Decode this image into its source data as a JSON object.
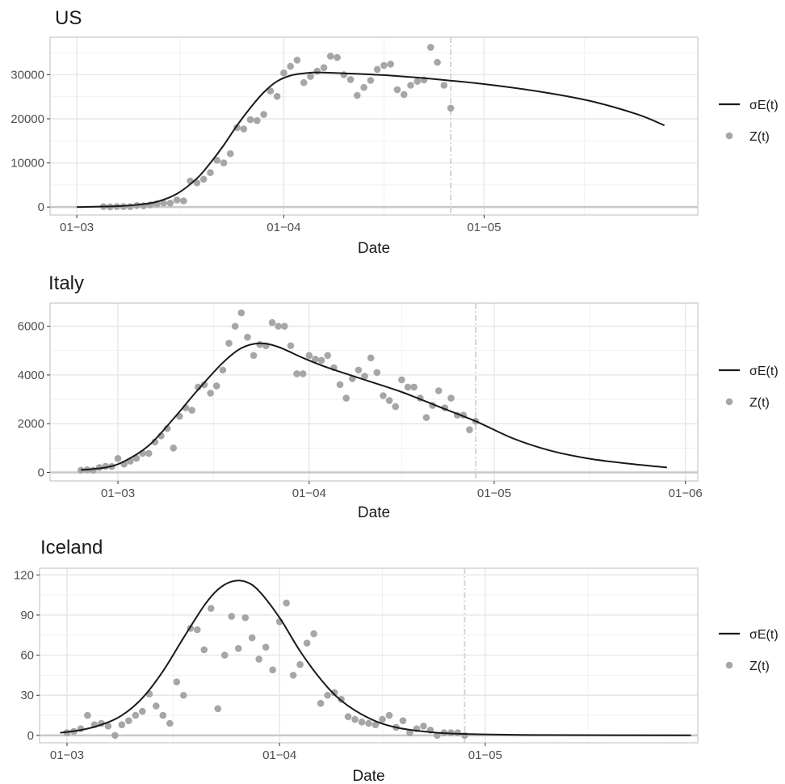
{
  "chart_data": [
    {
      "type": "line",
      "title": "US",
      "xlabel": "Date",
      "ylabel": "",
      "x_ticks": [
        "01−03",
        "01−04",
        "01−05"
      ],
      "x_tick_dates": [
        "2020-03-01",
        "2020-04-01",
        "2020-05-01"
      ],
      "xlim": [
        "2020-02-26",
        "2020-06-02"
      ],
      "ylim": [
        -1800,
        38500
      ],
      "y_ticks": [
        0,
        10000,
        20000,
        30000
      ],
      "y_tick_labels": [
        "0",
        "10000",
        "20000",
        "30000"
      ],
      "vline_date": "2020-04-26",
      "grid": true,
      "legend_position": "right",
      "legend": [
        "σE(t)",
        "Z(t)"
      ],
      "series": [
        {
          "name": "σE(t)",
          "kind": "line",
          "x": [
            "2020-03-01",
            "2020-03-07",
            "2020-03-10",
            "2020-03-13",
            "2020-03-16",
            "2020-03-19",
            "2020-03-21",
            "2020-03-23",
            "2020-03-25",
            "2020-03-27",
            "2020-03-29",
            "2020-03-31",
            "2020-04-02",
            "2020-04-04",
            "2020-04-06",
            "2020-04-10",
            "2020-04-17",
            "2020-04-25",
            "2020-05-02",
            "2020-05-10",
            "2020-05-17",
            "2020-05-24",
            "2020-05-28"
          ],
          "values": [
            0,
            200,
            500,
            1200,
            3000,
            6500,
            10000,
            14000,
            18500,
            22500,
            26000,
            28500,
            29800,
            30300,
            30500,
            30300,
            29800,
            28800,
            27700,
            26000,
            24000,
            21000,
            18500
          ]
        },
        {
          "name": "Z(t)",
          "kind": "scatter",
          "x": [
            "2020-03-05",
            "2020-03-06",
            "2020-03-07",
            "2020-03-08",
            "2020-03-09",
            "2020-03-10",
            "2020-03-11",
            "2020-03-12",
            "2020-03-13",
            "2020-03-14",
            "2020-03-15",
            "2020-03-16",
            "2020-03-17",
            "2020-03-18",
            "2020-03-19",
            "2020-03-20",
            "2020-03-21",
            "2020-03-22",
            "2020-03-23",
            "2020-03-24",
            "2020-03-25",
            "2020-03-26",
            "2020-03-27",
            "2020-03-28",
            "2020-03-29",
            "2020-03-30",
            "2020-03-31",
            "2020-04-01",
            "2020-04-02",
            "2020-04-03",
            "2020-04-04",
            "2020-04-05",
            "2020-04-06",
            "2020-04-07",
            "2020-04-08",
            "2020-04-09",
            "2020-04-10",
            "2020-04-11",
            "2020-04-12",
            "2020-04-13",
            "2020-04-14",
            "2020-04-15",
            "2020-04-16",
            "2020-04-17",
            "2020-04-18",
            "2020-04-19",
            "2020-04-20",
            "2020-04-21",
            "2020-04-22",
            "2020-04-23",
            "2020-04-24",
            "2020-04-25",
            "2020-04-26"
          ],
          "values": [
            100,
            50,
            120,
            100,
            100,
            350,
            300,
            500,
            700,
            900,
            900,
            1600,
            1400,
            5900,
            5500,
            6300,
            7800,
            10600,
            10000,
            12100,
            18000,
            17700,
            19800,
            19600,
            21000,
            26300,
            25100,
            30400,
            31900,
            33300,
            28200,
            29600,
            30800,
            31600,
            34200,
            33900,
            30000,
            28900,
            25300,
            27100,
            28700,
            31200,
            32100,
            32400,
            26600,
            25500,
            27600,
            28500,
            28800,
            36200,
            32800,
            27600,
            22400
          ]
        }
      ]
    },
    {
      "type": "line",
      "title": "Italy",
      "xlabel": "Date",
      "ylabel": "",
      "x_ticks": [
        "01−03",
        "01−04",
        "01−05",
        "01−06"
      ],
      "x_tick_dates": [
        "2020-03-01",
        "2020-04-01",
        "2020-05-01",
        "2020-06-01"
      ],
      "xlim": [
        "2020-02-19",
        "2020-06-03"
      ],
      "ylim": [
        -350,
        6950
      ],
      "y_ticks": [
        0,
        2000,
        4000,
        6000
      ],
      "y_tick_labels": [
        "0",
        "2000",
        "4000",
        "6000"
      ],
      "vline_date": "2020-04-28",
      "grid": true,
      "legend_position": "right",
      "legend": [
        "σE(t)",
        "Z(t)"
      ],
      "series": [
        {
          "name": "σE(t)",
          "kind": "line",
          "x": [
            "2020-02-24",
            "2020-02-28",
            "2020-03-02",
            "2020-03-06",
            "2020-03-10",
            "2020-03-14",
            "2020-03-18",
            "2020-03-21",
            "2020-03-24",
            "2020-03-27",
            "2020-03-31",
            "2020-04-04",
            "2020-04-10",
            "2020-04-16",
            "2020-04-22",
            "2020-04-28",
            "2020-05-04",
            "2020-05-10",
            "2020-05-16",
            "2020-05-22",
            "2020-05-29"
          ],
          "values": [
            100,
            200,
            450,
            1100,
            2200,
            3400,
            4500,
            5100,
            5300,
            5150,
            4700,
            4300,
            3800,
            3300,
            2700,
            2100,
            1400,
            900,
            580,
            380,
            200
          ]
        },
        {
          "name": "Z(t)",
          "kind": "scatter",
          "x": [
            "2020-02-24",
            "2020-02-25",
            "2020-02-26",
            "2020-02-27",
            "2020-02-28",
            "2020-02-29",
            "2020-03-01",
            "2020-03-02",
            "2020-03-03",
            "2020-03-04",
            "2020-03-05",
            "2020-03-06",
            "2020-03-07",
            "2020-03-08",
            "2020-03-09",
            "2020-03-10",
            "2020-03-11",
            "2020-03-12",
            "2020-03-13",
            "2020-03-14",
            "2020-03-15",
            "2020-03-16",
            "2020-03-17",
            "2020-03-18",
            "2020-03-19",
            "2020-03-20",
            "2020-03-21",
            "2020-03-22",
            "2020-03-23",
            "2020-03-24",
            "2020-03-25",
            "2020-03-26",
            "2020-03-27",
            "2020-03-28",
            "2020-03-29",
            "2020-03-30",
            "2020-03-31",
            "2020-04-01",
            "2020-04-02",
            "2020-04-03",
            "2020-04-04",
            "2020-04-05",
            "2020-04-06",
            "2020-04-07",
            "2020-04-08",
            "2020-04-09",
            "2020-04-10",
            "2020-04-11",
            "2020-04-12",
            "2020-04-13",
            "2020-04-14",
            "2020-04-15",
            "2020-04-16",
            "2020-04-17",
            "2020-04-18",
            "2020-04-19",
            "2020-04-20",
            "2020-04-21",
            "2020-04-22",
            "2020-04-23",
            "2020-04-24",
            "2020-04-25",
            "2020-04-26",
            "2020-04-27",
            "2020-04-28"
          ],
          "values": [
            90,
            110,
            90,
            200,
            250,
            240,
            570,
            340,
            460,
            580,
            780,
            780,
            1250,
            1500,
            1800,
            1000,
            2300,
            2650,
            2550,
            3500,
            3600,
            3250,
            3550,
            4200,
            5300,
            6000,
            6550,
            5550,
            4800,
            5250,
            5200,
            6150,
            6000,
            6000,
            5200,
            4050,
            4050,
            4800,
            4650,
            4600,
            4800,
            4300,
            3600,
            3050,
            3850,
            4200,
            3950,
            4700,
            4100,
            3150,
            2950,
            2700,
            3800,
            3500,
            3500,
            3050,
            2250,
            2750,
            3350,
            2650,
            3050,
            2350,
            2350,
            1750,
            2100
          ]
        }
      ]
    },
    {
      "type": "line",
      "title": "Iceland",
      "xlabel": "Date",
      "ylabel": "",
      "x_ticks": [
        "01−03",
        "01−04",
        "01−05"
      ],
      "x_tick_dates": [
        "2020-03-01",
        "2020-04-01",
        "2020-05-01"
      ],
      "xlim": [
        "2020-02-26",
        "2020-06-01"
      ],
      "ylim": [
        -5.5,
        125
      ],
      "y_ticks": [
        0,
        30,
        60,
        90,
        120
      ],
      "y_tick_labels": [
        "0",
        "30",
        "60",
        "90",
        "120"
      ],
      "vline_date": "2020-04-28",
      "grid": true,
      "legend_position": "right",
      "legend": [
        "σE(t)",
        "Z(t)"
      ],
      "series": [
        {
          "name": "σE(t)",
          "kind": "line",
          "x": [
            "2020-02-29",
            "2020-03-03",
            "2020-03-06",
            "2020-03-09",
            "2020-03-12",
            "2020-03-15",
            "2020-03-18",
            "2020-03-21",
            "2020-03-23",
            "2020-03-25",
            "2020-03-27",
            "2020-03-29",
            "2020-04-01",
            "2020-04-04",
            "2020-04-07",
            "2020-04-10",
            "2020-04-14",
            "2020-04-18",
            "2020-04-24",
            "2020-05-01",
            "2020-05-10",
            "2020-05-31"
          ],
          "values": [
            2,
            4,
            8,
            15,
            28,
            48,
            73,
            97,
            109,
            115,
            115,
            108,
            88,
            63,
            42,
            26,
            13,
            6,
            2,
            0.8,
            0.3,
            0.1
          ]
        },
        {
          "name": "Z(t)",
          "kind": "scatter",
          "x": [
            "2020-03-01",
            "2020-03-02",
            "2020-03-03",
            "2020-03-04",
            "2020-03-05",
            "2020-03-06",
            "2020-03-07",
            "2020-03-08",
            "2020-03-09",
            "2020-03-10",
            "2020-03-11",
            "2020-03-12",
            "2020-03-13",
            "2020-03-14",
            "2020-03-15",
            "2020-03-16",
            "2020-03-17",
            "2020-03-18",
            "2020-03-19",
            "2020-03-20",
            "2020-03-21",
            "2020-03-22",
            "2020-03-23",
            "2020-03-24",
            "2020-03-25",
            "2020-03-26",
            "2020-03-27",
            "2020-03-28",
            "2020-03-29",
            "2020-03-30",
            "2020-03-31",
            "2020-04-01",
            "2020-04-02",
            "2020-04-03",
            "2020-04-04",
            "2020-04-05",
            "2020-04-06",
            "2020-04-07",
            "2020-04-08",
            "2020-04-09",
            "2020-04-10",
            "2020-04-11",
            "2020-04-12",
            "2020-04-13",
            "2020-04-14",
            "2020-04-15",
            "2020-04-16",
            "2020-04-17",
            "2020-04-18",
            "2020-04-19",
            "2020-04-20",
            "2020-04-21",
            "2020-04-22",
            "2020-04-23",
            "2020-04-24",
            "2020-04-25",
            "2020-04-26",
            "2020-04-27",
            "2020-04-28"
          ],
          "values": [
            2,
            3,
            5,
            15,
            8,
            9,
            7,
            0,
            8,
            11,
            15,
            18,
            31,
            22,
            15,
            9,
            40,
            30,
            80,
            79,
            64,
            95,
            20,
            60,
            89,
            65,
            88,
            73,
            57,
            66,
            49,
            85,
            99,
            45,
            53,
            69,
            76,
            24,
            30,
            32,
            27,
            14,
            12,
            10,
            9,
            8,
            12,
            15,
            6,
            11,
            2,
            5,
            7,
            4,
            0,
            2,
            2,
            2,
            0
          ]
        }
      ]
    }
  ]
}
